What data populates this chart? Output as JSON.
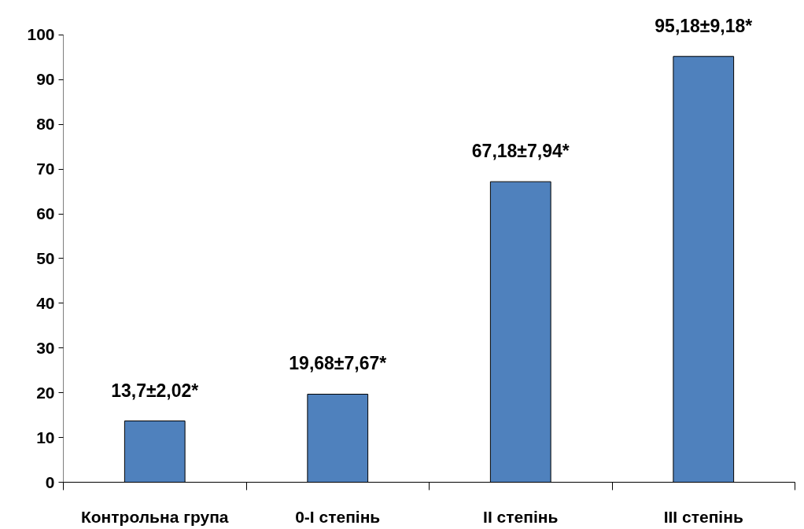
{
  "chart_data": {
    "type": "bar",
    "categories": [
      "Контрольна група",
      "0-I степінь",
      "II степінь",
      "III степінь"
    ],
    "values": [
      13.7,
      19.68,
      67.18,
      95.18
    ],
    "color": "#4f81bd",
    "value_labels": [
      "13,7±2,02*",
      "19,68±7,67*",
      "67,18±7,94*",
      "95,18±9,18*"
    ],
    "ylim": [
      0,
      100
    ],
    "yticks": [
      0,
      10,
      20,
      30,
      40,
      50,
      60,
      70,
      80,
      90,
      100
    ],
    "grid": false
  }
}
